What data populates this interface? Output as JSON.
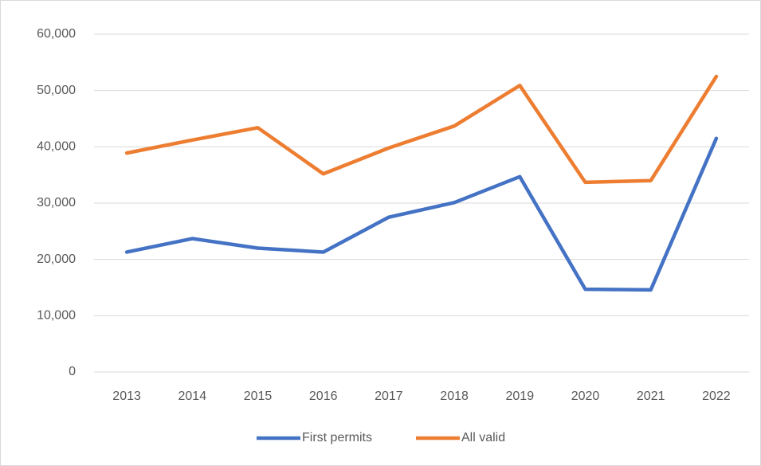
{
  "chart_data": {
    "type": "line",
    "categories": [
      "2013",
      "2014",
      "2015",
      "2016",
      "2017",
      "2018",
      "2019",
      "2020",
      "2021",
      "2022"
    ],
    "series": [
      {
        "name": "First permits",
        "color": "#4472c4",
        "values": [
          21300,
          23700,
          22000,
          21300,
          27500,
          30100,
          34700,
          14700,
          14600,
          41500
        ]
      },
      {
        "name": "All valid",
        "color": "#ed7d31",
        "values": [
          38900,
          41200,
          43400,
          35200,
          39800,
          43700,
          50900,
          33700,
          34000,
          52500
        ]
      }
    ],
    "ylim": [
      0,
      60000
    ],
    "yticks": [
      0,
      {
        "value": 10000,
        "label": "10,000"
      },
      {
        "value": 20000,
        "label": "20,000"
      },
      {
        "value": 30000,
        "label": "30,000"
      },
      {
        "value": 40000,
        "label": "40,000"
      },
      {
        "value": 50000,
        "label": "50,000"
      },
      {
        "value": 60000,
        "label": "60,000"
      }
    ],
    "grid": true,
    "legend": "bottom"
  }
}
